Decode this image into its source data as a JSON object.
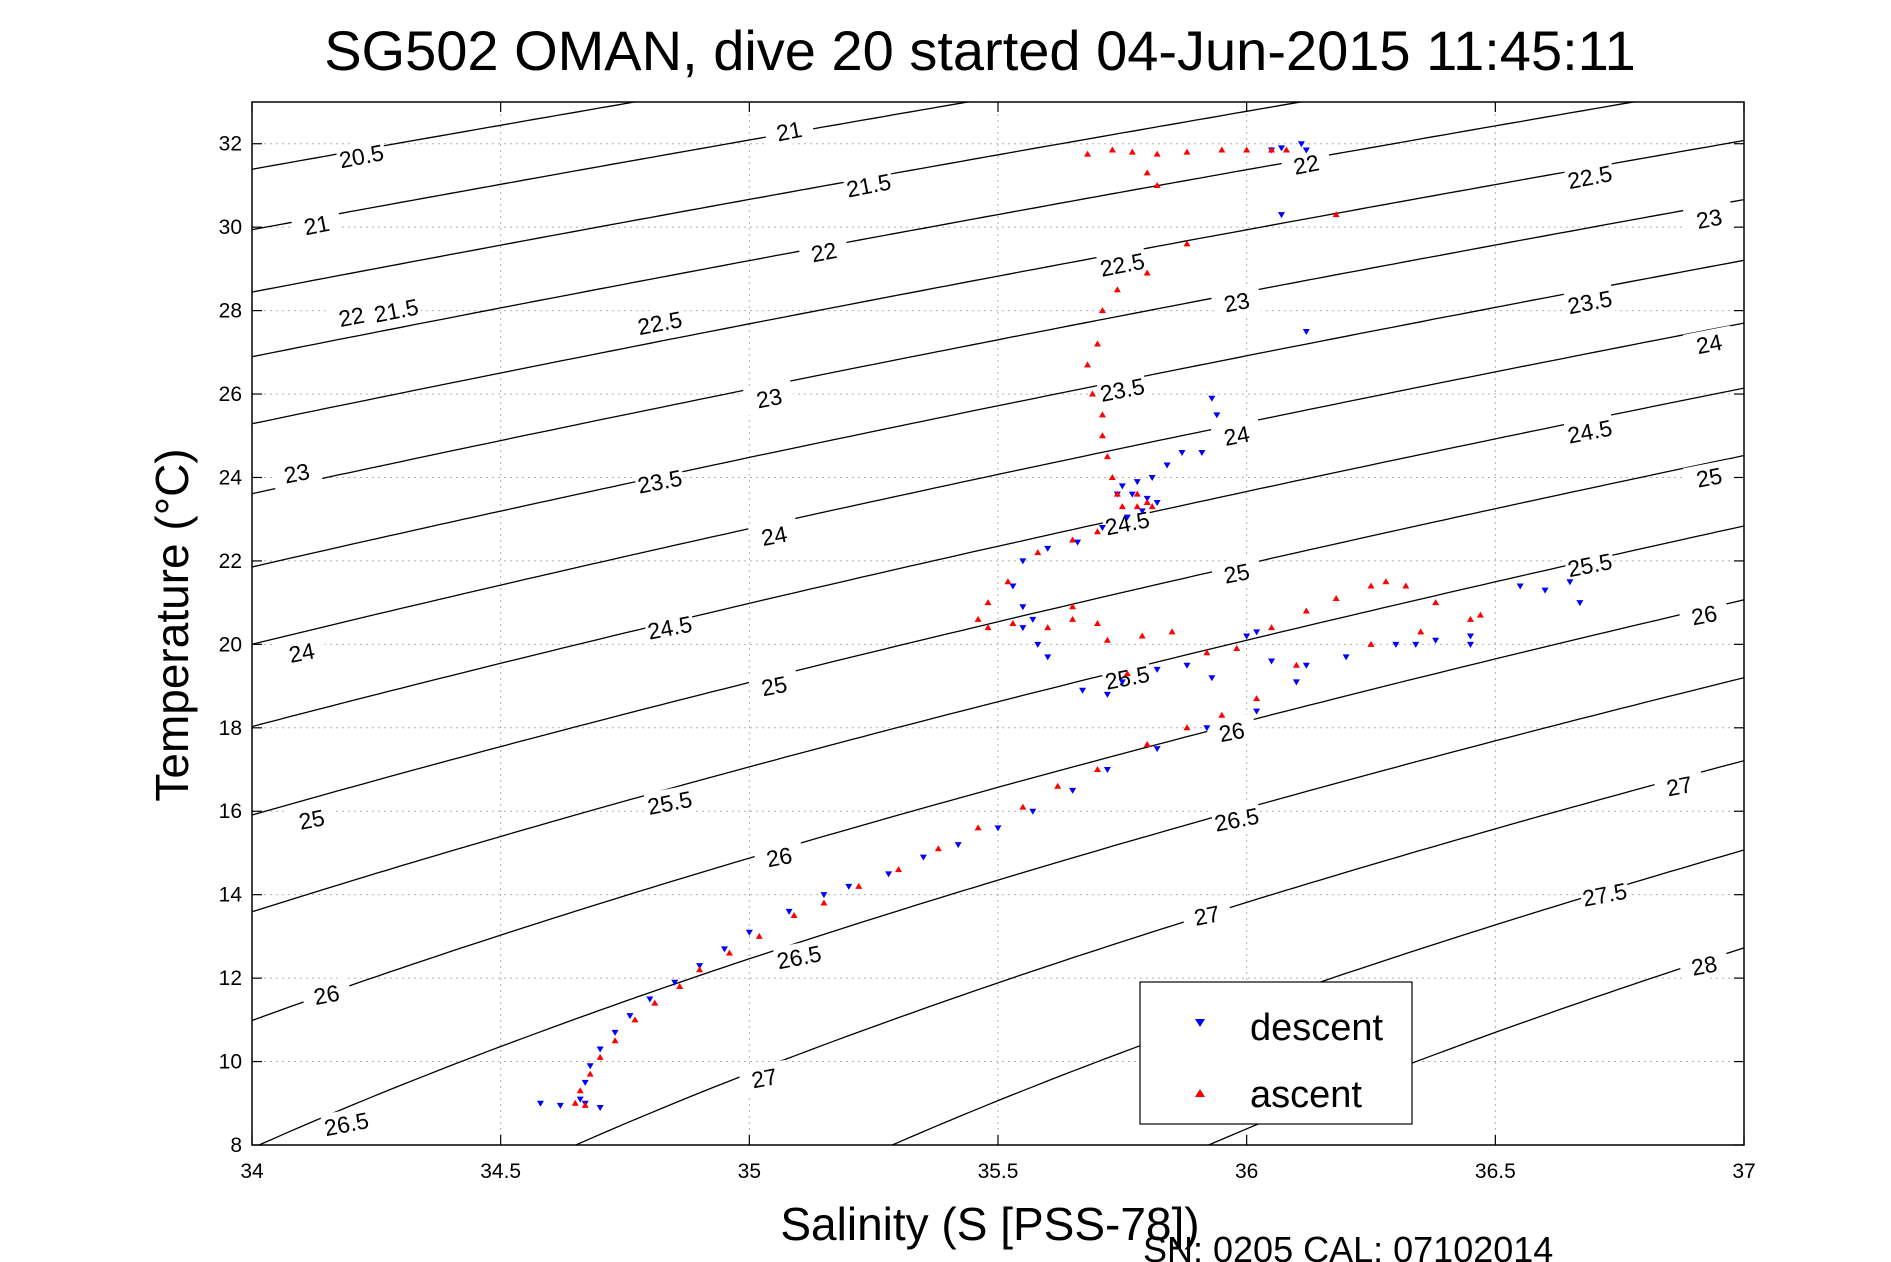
{
  "chart_data": {
    "type": "scatter",
    "title": "SG502 OMAN, dive 20 started 04-Jun-2015 11:45:11",
    "xlabel": "Salinity (S [PSS-78])",
    "ylabel": "Temperature (°C)",
    "xlim": [
      34,
      37
    ],
    "ylim": [
      8,
      33
    ],
    "xticks": [
      34,
      34.5,
      35,
      35.5,
      36,
      36.5,
      37
    ],
    "xtick_labels": [
      "34",
      "34.5",
      "35",
      "35.5",
      "36",
      "36.5",
      "37"
    ],
    "yticks": [
      8,
      10,
      12,
      14,
      16,
      18,
      20,
      22,
      24,
      26,
      28,
      30,
      32
    ],
    "ytick_labels": [
      "8",
      "10",
      "12",
      "14",
      "16",
      "18",
      "20",
      "22",
      "24",
      "26",
      "28",
      "30",
      "32"
    ],
    "grid": true,
    "legend_position": "bottom-right",
    "footer": "SN: 0205  CAL: 07102014",
    "contours": {
      "levels": [
        20.5,
        21,
        21.5,
        22,
        22.5,
        23,
        23.5,
        24,
        24.5,
        25,
        25.5,
        26,
        26.5,
        27,
        27.5,
        28
      ],
      "labels": [
        {
          "text": "20.5",
          "s": 34.22,
          "t": 31.7
        },
        {
          "text": "21",
          "s": 34.13,
          "t": 30.05
        },
        {
          "text": "21.5",
          "s": 34.29,
          "t": 28.0
        },
        {
          "text": "22",
          "s": 34.2,
          "t": 27.85
        },
        {
          "text": "23",
          "s": 34.09,
          "t": 24.1
        },
        {
          "text": "24",
          "s": 34.1,
          "t": 19.8
        },
        {
          "text": "25",
          "s": 34.12,
          "t": 15.8
        },
        {
          "text": "26",
          "s": 34.15,
          "t": 11.6
        },
        {
          "text": "26.5",
          "s": 34.19,
          "t": 8.5
        },
        {
          "text": "21",
          "s": 35.08,
          "t": 32.3
        },
        {
          "text": "21.5",
          "s": 35.24,
          "t": 31.0
        },
        {
          "text": "22",
          "s": 35.15,
          "t": 29.4
        },
        {
          "text": "22.5",
          "s": 34.82,
          "t": 27.7
        },
        {
          "text": "23",
          "s": 35.04,
          "t": 25.9
        },
        {
          "text": "23.5",
          "s": 34.82,
          "t": 23.9
        },
        {
          "text": "24",
          "s": 35.05,
          "t": 22.6
        },
        {
          "text": "24.5",
          "s": 34.84,
          "t": 20.4
        },
        {
          "text": "25",
          "s": 35.05,
          "t": 19.0
        },
        {
          "text": "25.5",
          "s": 34.84,
          "t": 16.2
        },
        {
          "text": "26",
          "s": 35.06,
          "t": 14.9
        },
        {
          "text": "26.5",
          "s": 35.1,
          "t": 12.5
        },
        {
          "text": "27",
          "s": 35.03,
          "t": 9.6
        },
        {
          "text": "22",
          "s": 36.12,
          "t": 31.5
        },
        {
          "text": "22.5",
          "s": 35.75,
          "t": 29.1
        },
        {
          "text": "23",
          "s": 35.98,
          "t": 28.2
        },
        {
          "text": "23.5",
          "s": 35.75,
          "t": 26.1
        },
        {
          "text": "24",
          "s": 35.98,
          "t": 25.0
        },
        {
          "text": "24.5",
          "s": 35.76,
          "t": 22.9
        },
        {
          "text": "25",
          "s": 35.98,
          "t": 21.7
        },
        {
          "text": "25.5",
          "s": 35.76,
          "t": 19.2
        },
        {
          "text": "26",
          "s": 35.97,
          "t": 17.9
        },
        {
          "text": "26.5",
          "s": 35.98,
          "t": 15.8
        },
        {
          "text": "27",
          "s": 35.92,
          "t": 13.5
        },
        {
          "text": "22.5",
          "s": 36.69,
          "t": 31.2
        },
        {
          "text": "23",
          "s": 36.93,
          "t": 30.2
        },
        {
          "text": "23.5",
          "s": 36.69,
          "t": 28.2
        },
        {
          "text": "24",
          "s": 36.93,
          "t": 27.2
        },
        {
          "text": "24.5",
          "s": 36.69,
          "t": 25.1
        },
        {
          "text": "25",
          "s": 36.93,
          "t": 24.0
        },
        {
          "text": "25.5",
          "s": 36.69,
          "t": 21.9
        },
        {
          "text": "26",
          "s": 36.92,
          "t": 20.7
        },
        {
          "text": "27",
          "s": 36.87,
          "t": 16.6
        },
        {
          "text": "27.5",
          "s": 36.72,
          "t": 14.0
        },
        {
          "text": "28",
          "s": 36.92,
          "t": 12.3
        }
      ]
    },
    "series": [
      {
        "name": "descent",
        "marker": "triangle-down",
        "color": "#0000ff",
        "points": [
          [
            36.11,
            32.0
          ],
          [
            36.07,
            31.9
          ],
          [
            36.05,
            31.85
          ],
          [
            36.12,
            31.85
          ],
          [
            36.07,
            30.3
          ],
          [
            36.12,
            27.5
          ],
          [
            35.93,
            25.9
          ],
          [
            35.94,
            25.5
          ],
          [
            35.91,
            24.6
          ],
          [
            35.87,
            24.6
          ],
          [
            35.84,
            24.3
          ],
          [
            35.81,
            24.0
          ],
          [
            35.78,
            23.9
          ],
          [
            35.75,
            23.8
          ],
          [
            35.74,
            23.6
          ],
          [
            35.77,
            23.6
          ],
          [
            35.8,
            23.5
          ],
          [
            35.82,
            23.4
          ],
          [
            35.79,
            23.2
          ],
          [
            35.76,
            23.05
          ],
          [
            35.71,
            22.8
          ],
          [
            35.66,
            22.45
          ],
          [
            35.6,
            22.3
          ],
          [
            35.55,
            22.0
          ],
          [
            35.53,
            21.4
          ],
          [
            35.55,
            20.9
          ],
          [
            35.55,
            20.4
          ],
          [
            35.57,
            20.6
          ],
          [
            35.58,
            20.0
          ],
          [
            35.6,
            19.7
          ],
          [
            35.67,
            18.9
          ],
          [
            35.72,
            18.8
          ],
          [
            35.75,
            19.1
          ],
          [
            35.82,
            19.4
          ],
          [
            35.88,
            19.5
          ],
          [
            35.93,
            19.2
          ],
          [
            36.0,
            20.2
          ],
          [
            36.02,
            20.3
          ],
          [
            36.05,
            19.6
          ],
          [
            36.12,
            19.5
          ],
          [
            36.2,
            19.7
          ],
          [
            36.3,
            20.0
          ],
          [
            36.38,
            20.1
          ],
          [
            36.45,
            20.2
          ],
          [
            36.55,
            21.4
          ],
          [
            36.6,
            21.3
          ],
          [
            36.65,
            21.5
          ],
          [
            36.67,
            21.0
          ],
          [
            36.45,
            20.0
          ],
          [
            36.34,
            20.0
          ],
          [
            36.1,
            19.1
          ],
          [
            36.02,
            18.4
          ],
          [
            35.92,
            18.0
          ],
          [
            35.82,
            17.5
          ],
          [
            35.72,
            17.0
          ],
          [
            35.65,
            16.5
          ],
          [
            35.57,
            16.0
          ],
          [
            35.5,
            15.6
          ],
          [
            35.42,
            15.2
          ],
          [
            35.35,
            14.9
          ],
          [
            35.28,
            14.5
          ],
          [
            35.2,
            14.2
          ],
          [
            35.15,
            14.0
          ],
          [
            35.08,
            13.6
          ],
          [
            35.0,
            13.1
          ],
          [
            34.95,
            12.7
          ],
          [
            34.9,
            12.3
          ],
          [
            34.85,
            11.9
          ],
          [
            34.8,
            11.5
          ],
          [
            34.76,
            11.1
          ],
          [
            34.73,
            10.7
          ],
          [
            34.7,
            10.3
          ],
          [
            34.68,
            9.9
          ],
          [
            34.67,
            9.5
          ],
          [
            34.66,
            9.1
          ],
          [
            34.67,
            9.0
          ],
          [
            34.7,
            8.9
          ],
          [
            34.58,
            9.0
          ],
          [
            34.62,
            8.95
          ]
        ]
      },
      {
        "name": "ascent",
        "marker": "triangle-up",
        "color": "#ff0000",
        "points": [
          [
            35.68,
            31.75
          ],
          [
            35.73,
            31.85
          ],
          [
            35.77,
            31.8
          ],
          [
            35.82,
            31.75
          ],
          [
            35.88,
            31.8
          ],
          [
            35.95,
            31.85
          ],
          [
            36.0,
            31.85
          ],
          [
            36.05,
            31.85
          ],
          [
            36.08,
            31.85
          ],
          [
            35.8,
            31.3
          ],
          [
            35.82,
            31.0
          ],
          [
            36.18,
            30.3
          ],
          [
            35.88,
            29.6
          ],
          [
            35.8,
            28.9
          ],
          [
            35.74,
            28.5
          ],
          [
            35.71,
            28.0
          ],
          [
            35.7,
            27.2
          ],
          [
            35.68,
            26.7
          ],
          [
            35.69,
            26.0
          ],
          [
            35.71,
            25.5
          ],
          [
            35.71,
            25.0
          ],
          [
            35.72,
            24.5
          ],
          [
            35.73,
            24.0
          ],
          [
            35.74,
            23.6
          ],
          [
            35.78,
            23.6
          ],
          [
            35.8,
            23.4
          ],
          [
            35.81,
            23.3
          ],
          [
            35.78,
            23.3
          ],
          [
            35.75,
            23.3
          ],
          [
            35.7,
            22.7
          ],
          [
            35.65,
            22.5
          ],
          [
            35.58,
            22.2
          ],
          [
            35.52,
            21.5
          ],
          [
            35.48,
            21.0
          ],
          [
            35.46,
            20.6
          ],
          [
            35.48,
            20.4
          ],
          [
            35.53,
            20.5
          ],
          [
            35.6,
            20.4
          ],
          [
            35.65,
            20.6
          ],
          [
            35.72,
            20.1
          ],
          [
            35.79,
            20.2
          ],
          [
            35.85,
            20.3
          ],
          [
            35.92,
            19.8
          ],
          [
            35.98,
            19.9
          ],
          [
            36.05,
            20.4
          ],
          [
            36.12,
            20.8
          ],
          [
            36.18,
            21.1
          ],
          [
            36.25,
            21.4
          ],
          [
            36.28,
            21.5
          ],
          [
            36.32,
            21.4
          ],
          [
            36.38,
            21.0
          ],
          [
            36.45,
            20.6
          ],
          [
            36.47,
            20.7
          ],
          [
            36.35,
            20.3
          ],
          [
            36.25,
            20.0
          ],
          [
            36.1,
            19.5
          ],
          [
            36.02,
            18.7
          ],
          [
            35.95,
            18.3
          ],
          [
            35.88,
            18.0
          ],
          [
            35.8,
            17.6
          ],
          [
            35.7,
            17.0
          ],
          [
            35.62,
            16.6
          ],
          [
            35.55,
            16.1
          ],
          [
            35.46,
            15.6
          ],
          [
            35.38,
            15.1
          ],
          [
            35.3,
            14.6
          ],
          [
            35.22,
            14.2
          ],
          [
            35.15,
            13.8
          ],
          [
            35.09,
            13.5
          ],
          [
            35.02,
            13.0
          ],
          [
            34.96,
            12.6
          ],
          [
            34.9,
            12.2
          ],
          [
            34.86,
            11.8
          ],
          [
            34.81,
            11.4
          ],
          [
            34.77,
            11.0
          ],
          [
            34.73,
            10.5
          ],
          [
            34.7,
            10.1
          ],
          [
            34.68,
            9.7
          ],
          [
            34.66,
            9.3
          ],
          [
            34.65,
            9.0
          ],
          [
            34.67,
            8.95
          ],
          [
            35.7,
            20.5
          ],
          [
            35.65,
            20.9
          ],
          [
            35.76,
            19.3
          ]
        ]
      }
    ]
  }
}
